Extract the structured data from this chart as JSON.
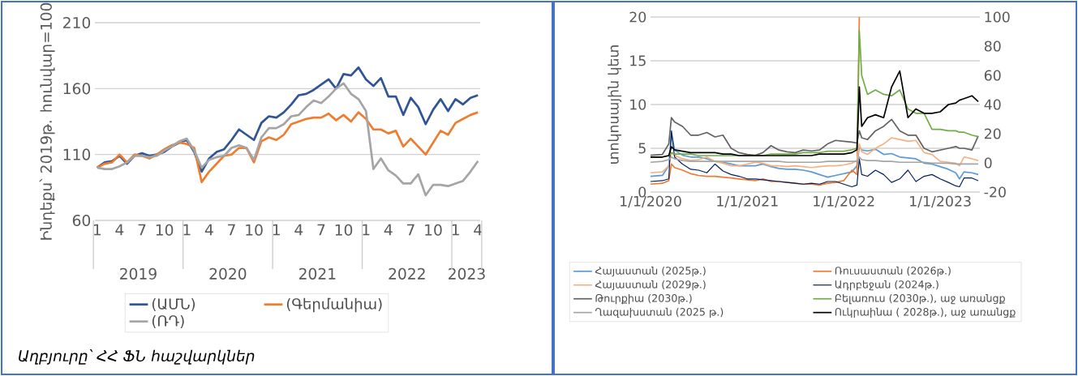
{
  "chart_data": [
    {
      "type": "line",
      "ylabel": "Ինդեքս՝ 2019թ. հունվար=100",
      "ylim": [
        60,
        210
      ],
      "yticks": [
        60,
        110,
        160,
        210
      ],
      "grid": "y",
      "legend": "bottom",
      "categories": [
        "1",
        null,
        null,
        "4",
        null,
        null,
        "7",
        null,
        null,
        "10",
        null,
        null,
        "1",
        null,
        null,
        "4",
        null,
        null,
        "7",
        null,
        null,
        "10",
        null,
        null,
        "1",
        null,
        null,
        "4",
        null,
        null,
        "7",
        null,
        null,
        "10",
        null,
        null,
        "1",
        null,
        null,
        "4",
        null,
        null,
        "7",
        null,
        null,
        "10",
        null,
        null,
        "1",
        null,
        null,
        "4"
      ],
      "series": [
        {
          "name": "(ԱՄՆ)",
          "color": "#2f5597",
          "values": [
            100,
            104,
            105,
            109,
            103,
            109,
            111,
            109,
            110,
            112,
            116,
            119,
            121,
            112,
            97,
            107,
            112,
            114,
            121,
            129,
            125,
            121,
            134,
            139,
            138,
            142,
            148,
            155,
            156,
            159,
            163,
            167,
            160,
            171,
            170,
            176,
            167,
            162,
            168,
            154,
            154,
            140,
            153,
            146,
            133,
            144,
            152,
            143,
            152,
            148,
            153,
            155
          ]
        },
        {
          "name": "(Գերմանիա)",
          "color": "#ed7d31",
          "values": [
            100,
            103,
            104,
            110,
            104,
            110,
            109,
            107,
            110,
            114,
            117,
            119,
            118,
            115,
            89,
            97,
            103,
            109,
            110,
            115,
            115,
            104,
            120,
            123,
            121,
            125,
            133,
            135,
            137,
            138,
            138,
            141,
            136,
            140,
            135,
            142,
            137,
            129,
            129,
            126,
            128,
            116,
            122,
            116,
            110,
            119,
            128,
            125,
            134,
            137,
            140,
            142
          ]
        },
        {
          "name": "(ՌԴ)",
          "color": "#a5a5a5",
          "values": [
            100,
            99,
            99,
            101,
            104,
            109,
            109,
            108,
            109,
            113,
            116,
            120,
            122,
            113,
            100,
            106,
            108,
            109,
            115,
            117,
            115,
            106,
            123,
            130,
            130,
            133,
            139,
            140,
            146,
            151,
            149,
            154,
            160,
            164,
            156,
            152,
            143,
            99,
            107,
            98,
            94,
            88,
            88,
            95,
            79,
            87,
            87,
            86,
            88,
            90,
            97,
            105
          ]
        }
      ],
      "annotations": [
        "2019",
        "2020",
        "2021",
        "2022",
        "2023",
        "Աղբյուրը՝ ՀՀ ՖՆ հաշվարկներ"
      ]
    },
    {
      "type": "line",
      "ylabel": "տոկոսային կետ",
      "xlim": [
        "2020-01-01",
        "2023-05-31"
      ],
      "xticks": [
        {
          "value": "2020-01-01",
          "label": "1/1/2020"
        },
        {
          "value": "2021-01-01",
          "label": "1/1/2021"
        },
        {
          "value": "2022-01-01",
          "label": "1/1/2022"
        },
        {
          "value": "2023-01-01",
          "label": "1/1/2023"
        }
      ],
      "ylim": [
        0,
        20
      ],
      "yticks": [
        0,
        5,
        10,
        15,
        20
      ],
      "y2lim": [
        -20,
        100
      ],
      "y2ticks": [
        -20,
        0,
        20,
        40,
        60,
        80,
        100
      ],
      "grid": "y",
      "legend": "bottom",
      "x": [
        "2020-01-01",
        "2020-02-15",
        "2020-03-10",
        "2020-03-20",
        "2020-04-01",
        "2020-05-01",
        "2020-06-01",
        "2020-07-01",
        "2020-08-01",
        "2020-09-01",
        "2020-10-01",
        "2020-11-01",
        "2020-12-01",
        "2021-01-01",
        "2021-02-01",
        "2021-03-01",
        "2021-04-01",
        "2021-05-01",
        "2021-06-01",
        "2021-07-01",
        "2021-08-01",
        "2021-09-01",
        "2021-10-01",
        "2021-11-01",
        "2021-12-01",
        "2022-01-01",
        "2022-02-01",
        "2022-02-20",
        "2022-03-01",
        "2022-03-10",
        "2022-04-01",
        "2022-05-01",
        "2022-06-01",
        "2022-07-01",
        "2022-08-01",
        "2022-09-01",
        "2022-10-01",
        "2022-11-01",
        "2022-12-01",
        "2023-01-01",
        "2023-02-01",
        "2023-03-01",
        "2023-03-15",
        "2023-04-01",
        "2023-05-01",
        "2023-05-25"
      ],
      "series": [
        {
          "name": "Հայաստան (2025թ.)",
          "color": "#5b9bd5",
          "values": [
            1.8,
            1.9,
            3.0,
            6.8,
            4.8,
            4.2,
            4.0,
            4.0,
            3.8,
            3.5,
            3.4,
            3.2,
            3.0,
            3.0,
            3.0,
            3.2,
            2.9,
            2.7,
            2.6,
            2.6,
            2.5,
            2.3,
            2.0,
            1.7,
            1.9,
            2.1,
            2.3,
            3.0,
            5.2,
            4.8,
            4.7,
            4.9,
            4.3,
            4.4,
            4.0,
            3.9,
            3.8,
            3.3,
            3.2,
            2.9,
            2.6,
            2.2,
            1.5,
            2.3,
            2.2,
            2.0
          ]
        },
        {
          "name": "Ռուսաստան (2026թ.)",
          "color": "#ed7d31",
          "values": [
            0.9,
            1.0,
            1.3,
            3.2,
            2.8,
            2.5,
            2.1,
            1.9,
            1.8,
            1.8,
            1.7,
            1.6,
            1.5,
            1.4,
            1.3,
            1.5,
            1.2,
            1.2,
            1.1,
            1.0,
            0.9,
            0.9,
            0.8,
            1.0,
            1.1,
            1.3,
            2.5,
            2.0,
            20,
            null,
            null,
            null,
            null,
            null,
            null,
            null,
            null,
            null,
            null,
            null,
            null,
            null,
            null,
            null,
            null,
            null
          ]
        },
        {
          "name": "Հայաստան (2029թ.)",
          "color": "#f4b183",
          "values": [
            2.2,
            2.3,
            3.0,
            4.5,
            4.2,
            3.8,
            3.6,
            3.7,
            4.0,
            3.5,
            3.3,
            3.0,
            3.0,
            3.2,
            3.4,
            3.3,
            3.0,
            3.0,
            2.9,
            3.0,
            2.9,
            2.8,
            2.9,
            3.0,
            3.0,
            3.1,
            3.3,
            3.6,
            5.5,
            4.6,
            4.3,
            5.0,
            5.5,
            6.2,
            6.0,
            5.8,
            5.9,
            4.5,
            4.3,
            3.5,
            3.4,
            3.3,
            3.0,
            4.0,
            3.8,
            3.6
          ]
        },
        {
          "name": "Ադրբեջան (2024թ.)",
          "color": "#002060",
          "values": [
            1.2,
            1.3,
            1.5,
            7.0,
            4.0,
            3.2,
            2.6,
            2.5,
            2.2,
            3.2,
            2.4,
            2.0,
            1.8,
            1.5,
            1.5,
            1.4,
            1.3,
            1.2,
            1.1,
            1.0,
            0.9,
            1.0,
            0.9,
            1.2,
            1.2,
            0.9,
            0.6,
            0.8,
            3.8,
            2.0,
            1.8,
            2.5,
            2.0,
            1.1,
            1.5,
            2.5,
            1.2,
            1.8,
            2.0,
            1.5,
            1.1,
            0.7,
            0.6,
            1.6,
            1.6,
            1.3
          ]
        },
        {
          "name": "Թուրքիա (2030թ.)",
          "color": "#636363",
          "values": [
            4.2,
            4.3,
            5.5,
            8.5,
            8.0,
            7.5,
            6.5,
            6.5,
            6.8,
            6.3,
            6.5,
            5.0,
            4.5,
            4.3,
            4.2,
            4.5,
            5.3,
            4.8,
            4.6,
            4.5,
            4.8,
            4.7,
            4.8,
            5.5,
            5.9,
            5.8,
            5.7,
            5.6,
            7.0,
            6.2,
            6.0,
            7.0,
            7.5,
            8.3,
            7.0,
            6.5,
            6.5,
            5.0,
            4.6,
            4.8,
            5.0,
            5.2,
            5.0,
            5.0,
            4.8,
            6.4
          ]
        },
        {
          "name": "Բելառուս (2030թ.), աջ առանցք",
          "color": "#70ad47",
          "axis": "y2",
          "values": [
            4,
            4,
            5,
            7,
            6,
            6,
            6,
            5,
            5,
            5,
            5,
            5,
            5,
            5,
            5,
            5,
            6,
            6,
            6,
            6,
            7,
            7,
            7,
            8,
            8,
            8,
            9,
            10,
            91,
            60,
            47,
            50,
            47,
            46,
            50,
            37,
            34,
            34,
            23,
            23,
            22,
            22,
            21,
            21,
            19,
            18
          ]
        },
        {
          "name": "Ղազախստան (2025 թ.)",
          "color": "#a5a5a5",
          "values": [
            3.4,
            3.5,
            3.7,
            4.0,
            3.8,
            3.6,
            3.5,
            3.5,
            3.5,
            3.5,
            3.5,
            3.5,
            3.5,
            3.5,
            3.5,
            3.5,
            3.5,
            3.5,
            3.4,
            3.4,
            3.4,
            3.4,
            3.4,
            3.5,
            3.5,
            3.5,
            3.5,
            3.5,
            4.0,
            3.7,
            3.6,
            3.6,
            3.5,
            3.5,
            3.4,
            3.4,
            3.4,
            3.4,
            3.3,
            3.3,
            3.3,
            3.2,
            3.2,
            3.2,
            3.2,
            3.2
          ]
        },
        {
          "name": "Ուկրաինա ( 2028թ.), աջ առանցք",
          "color": "#000000",
          "axis": "y2",
          "values": [
            4,
            4,
            5,
            11,
            9,
            8,
            7,
            7,
            7,
            7,
            6,
            6,
            5,
            5,
            5,
            5,
            5,
            5,
            5,
            5,
            5,
            5,
            6,
            6,
            6,
            6,
            7,
            9,
            52,
            25,
            31,
            33,
            31,
            52,
            63,
            31,
            37,
            34,
            34,
            35,
            40,
            41,
            43,
            44,
            46,
            42
          ]
        }
      ]
    }
  ]
}
